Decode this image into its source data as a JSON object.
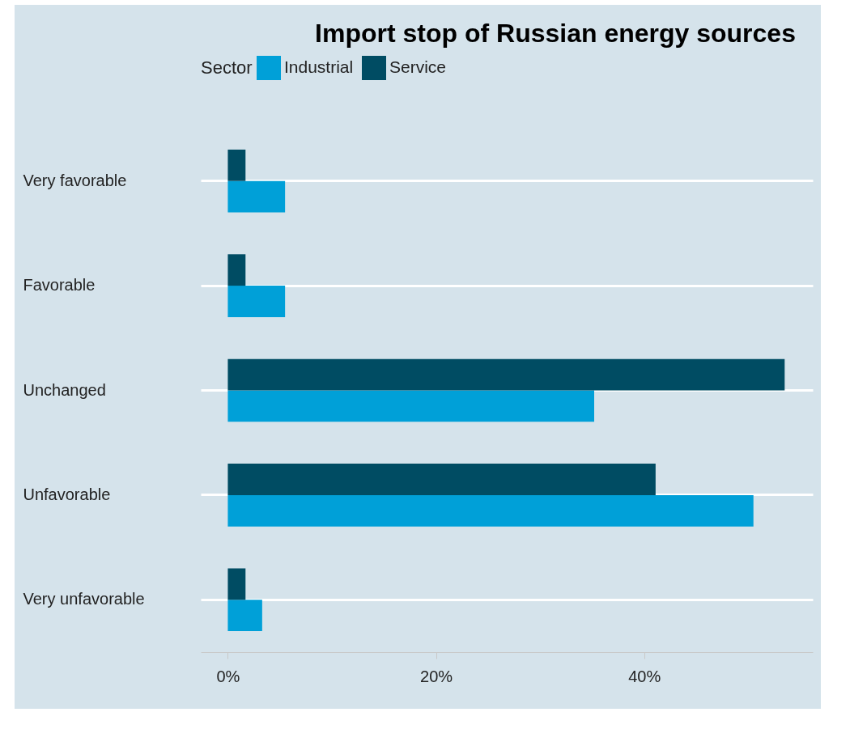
{
  "chart_data": {
    "type": "bar",
    "orientation": "horizontal",
    "title": "Import stop of Russian energy sources",
    "legend_title": "Sector",
    "legend": "top",
    "grid": "y",
    "categories": [
      "Very favorable",
      "Favorable",
      "Unchanged",
      "Unfavorable",
      "Very unfavorable"
    ],
    "series": [
      {
        "name": "Industrial",
        "color": "#00a0d8",
        "values": [
          5.5,
          5.5,
          35.2,
          50.5,
          3.3
        ]
      },
      {
        "name": "Service",
        "color": "#004c63",
        "values": [
          1.7,
          1.7,
          53.5,
          41.1,
          1.7
        ]
      }
    ],
    "xlim": [
      -2.6,
      56.2
    ],
    "xticks": [
      {
        "value": 0,
        "label": "0%"
      },
      {
        "value": 20,
        "label": "20%"
      },
      {
        "value": 40,
        "label": "40%"
      }
    ]
  }
}
